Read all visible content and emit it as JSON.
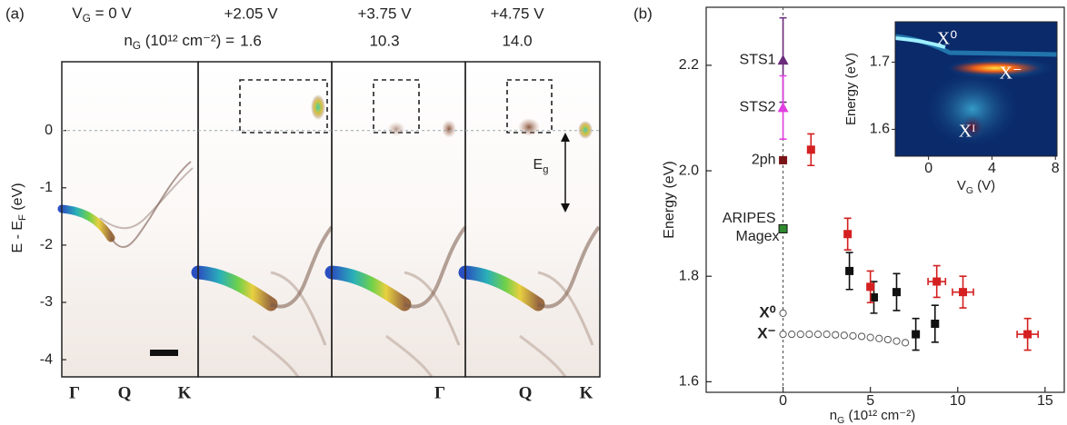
{
  "chart_data": [
    {
      "type": "image",
      "panel_label": "(a)",
      "ylabel": [
        "E - E",
        {
          "sub": "F"
        },
        " (eV)"
      ],
      "ylim": [
        -4.3,
        1.2
      ],
      "yticks": [
        0,
        -1,
        -2,
        -3,
        -4
      ],
      "headers": [
        [
          "V",
          {
            "sub": "G"
          },
          " = 0 V"
        ],
        "+2.05 V",
        "+3.75 V",
        "+4.75 V"
      ],
      "density_label": [
        "n",
        {
          "sub": "G"
        },
        " (10¹² cm⁻²) ="
      ],
      "densities": [
        "1.6",
        "10.3",
        "14.0"
      ],
      "kpoints": [
        "Γ",
        "Q",
        "K"
      ],
      "gap_label": [
        "E",
        {
          "sub": "g"
        }
      ]
    },
    {
      "type": "scatter",
      "panel_label": "(b)",
      "ylabel": "Energy (eV)",
      "xlabel": [
        "n",
        {
          "sub": "G"
        },
        " (10¹² cm⁻²)"
      ],
      "xlim": [
        -4.4,
        16.1
      ],
      "xticks": [
        0,
        5,
        10,
        15
      ],
      "ylim": [
        1.58,
        2.31
      ],
      "yticks": [
        1.6,
        1.8,
        {
          "value": 2,
          "label": "2.0"
        },
        2.2
      ],
      "series": [
        {
          "name": "STS1",
          "color": "#6b2b7c",
          "marker": "triangle",
          "x": [
            0
          ],
          "values": [
            2.21
          ],
          "errors": [
            0.08
          ]
        },
        {
          "name": "STS2",
          "color": "#e040e0",
          "marker": "triangle",
          "x": [
            0
          ],
          "values": [
            2.12
          ],
          "errors": [
            0.06
          ]
        },
        {
          "name": "2ph",
          "color": "#7b1416",
          "marker": "square",
          "x": [
            0
          ],
          "values": [
            2.02
          ]
        },
        {
          "name": "ARIPES",
          "name2": "Magex",
          "name_color": "#222222",
          "color": "#2f8a2f",
          "marker": "square",
          "x": [
            0
          ],
          "values": [
            1.89
          ]
        },
        {
          "name": "X⁰",
          "name_color": "#111111",
          "color": "#555555",
          "marker": "open-circle",
          "x": [
            0
          ],
          "values": [
            1.73
          ]
        },
        {
          "name": "X⁻",
          "name_color": "#111111",
          "color": "#555555",
          "marker": "open-circle",
          "x": [
            0,
            0.5,
            1,
            1.5,
            2,
            2.5,
            3,
            3.5,
            4,
            4.5,
            5,
            5.5,
            6,
            6.5,
            7
          ],
          "values": [
            1.69,
            1.69,
            1.69,
            1.69,
            1.69,
            1.69,
            1.689,
            1.688,
            1.687,
            1.686,
            1.684,
            1.682,
            1.68,
            1.677,
            1.674
          ]
        },
        {
          "color": "#111111",
          "marker": "square",
          "x": [
            3.8,
            5.2,
            6.5,
            7.6,
            8.7
          ],
          "values": [
            1.81,
            1.76,
            1.77,
            1.69,
            1.71
          ],
          "errors": [
            0.035,
            0.03,
            0.035,
            0.03,
            0.035
          ]
        },
        {
          "color": "#d42020",
          "marker": "square",
          "x": [
            1.6,
            3.7,
            5.0,
            8.8,
            10.3,
            14.0
          ],
          "values": [
            2.04,
            1.88,
            1.78,
            1.79,
            1.77,
            1.69
          ],
          "errors": [
            0.03,
            0.03,
            0.03,
            0.03,
            0.03,
            0.03
          ],
          "xerrors": [
            null,
            null,
            null,
            0.5,
            0.6,
            0.6
          ]
        }
      ]
    },
    {
      "type": "image",
      "inset": true,
      "ylabel": "Energy (eV)",
      "xlabel": [
        "V",
        {
          "sub": "G"
        },
        " (V)"
      ],
      "xlim": [
        -2.1,
        8.1
      ],
      "xticks": [
        0,
        4,
        8
      ],
      "ylim": [
        1.56,
        1.76
      ],
      "yticks": [
        1.6,
        1.7
      ],
      "annotations": [
        "X⁰",
        "X⁻",
        "Xᴵ"
      ]
    }
  ]
}
